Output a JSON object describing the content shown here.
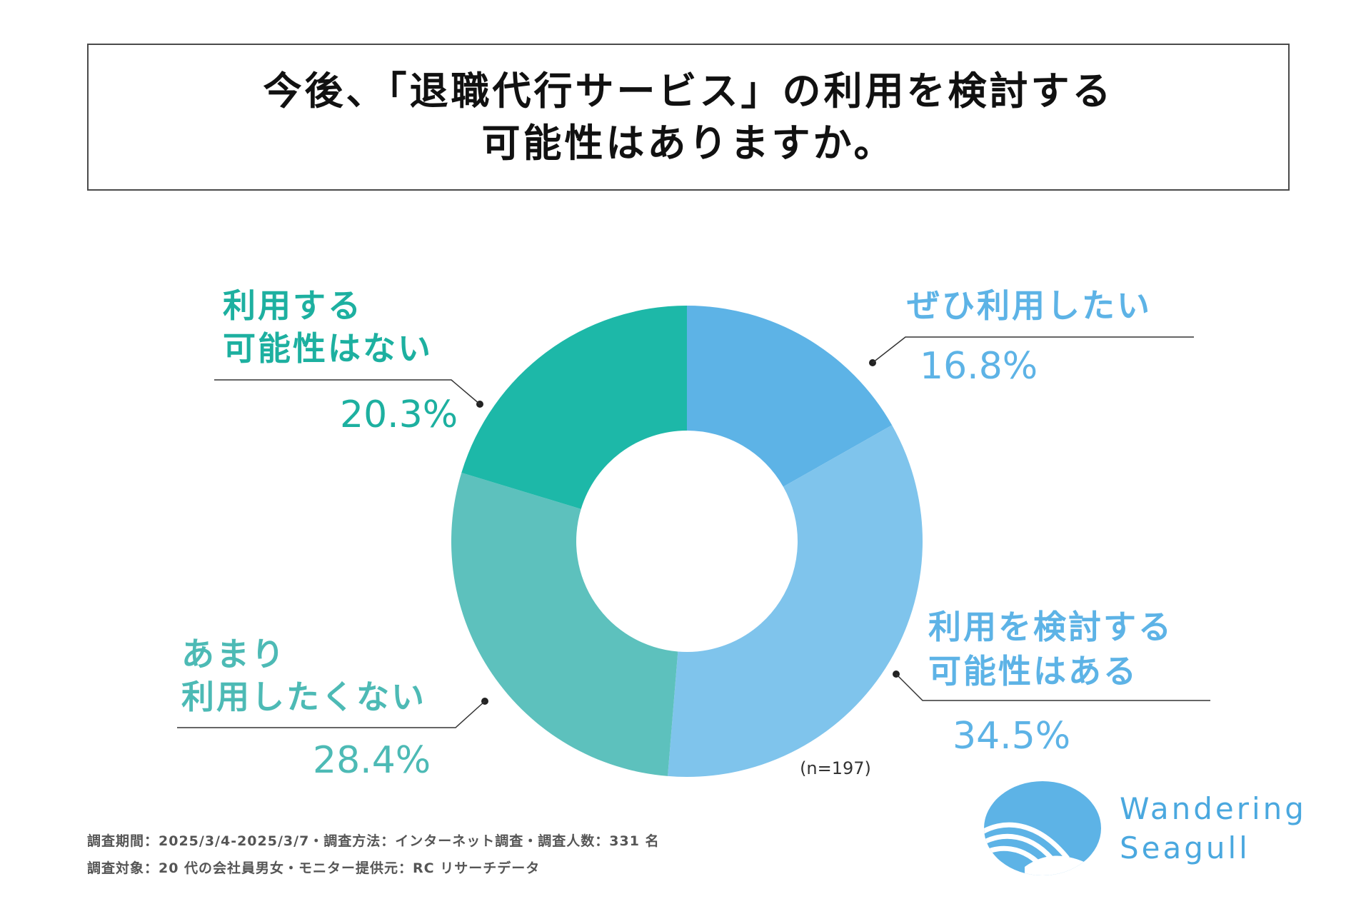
{
  "title": {
    "line1": "今後、「退職代行サービス」の利用を検討する",
    "line2": "可能性はありますか。"
  },
  "chart_data": {
    "type": "pie",
    "donut": true,
    "title": "今後、「退職代行サービス」の利用を検討する可能性はありますか。",
    "slices": [
      {
        "label_lines": [
          "ぜひ利用したい"
        ],
        "value": 16.8,
        "value_label": "16.8%",
        "color": "#5db3e6",
        "text_color": "#5db3e6"
      },
      {
        "label_lines": [
          "利用を検討する",
          "可能性はある"
        ],
        "value": 34.5,
        "value_label": "34.5%",
        "color": "#7fc4ec",
        "text_color": "#5db3e6"
      },
      {
        "label_lines": [
          "あまり",
          "利用したくない"
        ],
        "value": 28.4,
        "value_label": "28.4%",
        "color": "#5dc1bd",
        "text_color": "#4dbab5"
      },
      {
        "label_lines": [
          "利用する",
          "可能性はない"
        ],
        "value": 20.3,
        "value_label": "20.3%",
        "color": "#1db8a8",
        "text_color": "#1db0a0"
      }
    ],
    "sample_note": "(n=197)",
    "legend": "none"
  },
  "survey": {
    "line1": "調査期間：2025/3/4-2025/3/7・調査方法：インターネット調査・調査人数：331 名",
    "line2": "調査対象：20 代の会社員男女・モニター提供元：RC リサーチデータ"
  },
  "brand": {
    "line1": "Wandering",
    "line2": "Seagull",
    "color": "#4aa8df"
  }
}
